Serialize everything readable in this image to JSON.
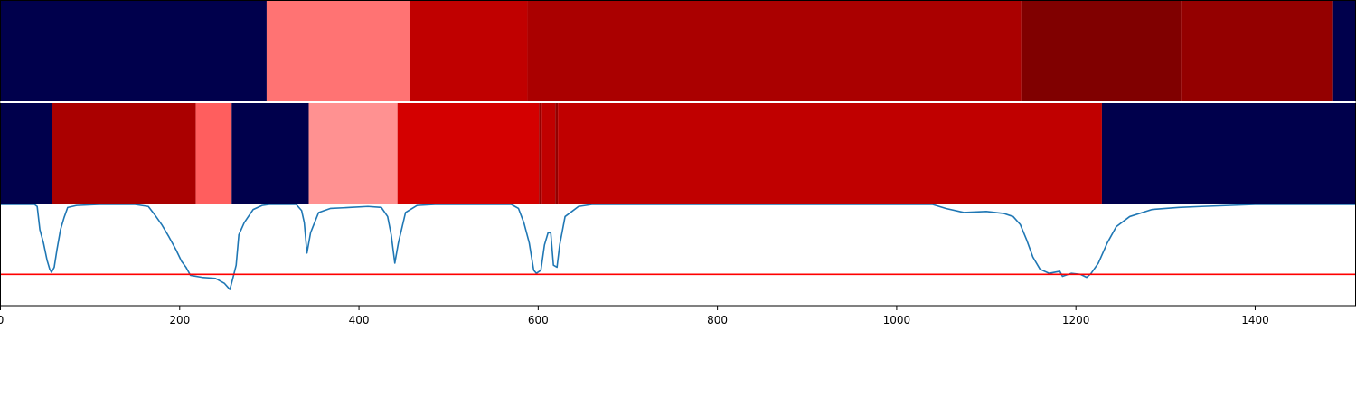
{
  "chart_data": {
    "type": "heatmap",
    "x_domain": [
      0,
      1512
    ],
    "xticks": [
      0,
      200,
      400,
      600,
      800,
      1000,
      1200,
      1400
    ],
    "xtick_labels": [
      "0",
      "200",
      "400",
      "600",
      "800",
      "1000",
      "1200",
      "1400"
    ],
    "grid": false,
    "track1": {
      "segments": [
        {
          "x0": 0,
          "x1": 297,
          "color": "#00004c"
        },
        {
          "x0": 297,
          "x1": 457,
          "color": "#ff7373"
        },
        {
          "x0": 457,
          "x1": 588,
          "color": "#c00000"
        },
        {
          "x0": 588,
          "x1": 1139,
          "color": "#aa0000"
        },
        {
          "x0": 1139,
          "x1": 1317,
          "color": "#800000"
        },
        {
          "x0": 1317,
          "x1": 1487,
          "color": "#940000"
        },
        {
          "x0": 1487,
          "x1": 1512,
          "color": "#00004c"
        }
      ]
    },
    "track2": {
      "segments": [
        {
          "x0": 0,
          "x1": 57,
          "color": "#00004c"
        },
        {
          "x0": 57,
          "x1": 218,
          "color": "#aa0000"
        },
        {
          "x0": 218,
          "x1": 258,
          "color": "#ff5e5e"
        },
        {
          "x0": 258,
          "x1": 344,
          "color": "#00004c"
        },
        {
          "x0": 344,
          "x1": 443,
          "color": "#ff9191"
        },
        {
          "x0": 443,
          "x1": 601,
          "color": "#d40000"
        },
        {
          "x0": 601,
          "x1": 604,
          "color": "#940000"
        },
        {
          "x0": 604,
          "x1": 619,
          "color": "#c00000"
        },
        {
          "x0": 619,
          "x1": 622,
          "color": "#940000"
        },
        {
          "x0": 622,
          "x1": 1229,
          "color": "#c00000"
        },
        {
          "x0": 1229,
          "x1": 1512,
          "color": "#00004c"
        }
      ]
    },
    "line": {
      "ylim": [
        0,
        1
      ],
      "color": "#1f77b4",
      "threshold": {
        "y": 0.31,
        "color": "#ff0000"
      },
      "points": [
        [
          0,
          1.0
        ],
        [
          38,
          1.0
        ],
        [
          41,
          0.98
        ],
        [
          44,
          0.75
        ],
        [
          48,
          0.62
        ],
        [
          52,
          0.45
        ],
        [
          55,
          0.36
        ],
        [
          57,
          0.33
        ],
        [
          60,
          0.38
        ],
        [
          63,
          0.55
        ],
        [
          67,
          0.75
        ],
        [
          71,
          0.87
        ],
        [
          75,
          0.97
        ],
        [
          85,
          0.99
        ],
        [
          110,
          1.0
        ],
        [
          150,
          1.0
        ],
        [
          165,
          0.98
        ],
        [
          172,
          0.9
        ],
        [
          180,
          0.8
        ],
        [
          188,
          0.68
        ],
        [
          196,
          0.55
        ],
        [
          202,
          0.44
        ],
        [
          207,
          0.38
        ],
        [
          212,
          0.3
        ],
        [
          225,
          0.28
        ],
        [
          240,
          0.27
        ],
        [
          250,
          0.22
        ],
        [
          256,
          0.16
        ],
        [
          259,
          0.26
        ],
        [
          263,
          0.4
        ],
        [
          266,
          0.7
        ],
        [
          272,
          0.82
        ],
        [
          282,
          0.95
        ],
        [
          292,
          0.99
        ],
        [
          300,
          1.0
        ],
        [
          330,
          1.0
        ],
        [
          336,
          0.94
        ],
        [
          339,
          0.82
        ],
        [
          342,
          0.52
        ],
        [
          346,
          0.72
        ],
        [
          355,
          0.92
        ],
        [
          368,
          0.96
        ],
        [
          390,
          0.97
        ],
        [
          410,
          0.98
        ],
        [
          425,
          0.97
        ],
        [
          432,
          0.88
        ],
        [
          436,
          0.7
        ],
        [
          440,
          0.42
        ],
        [
          444,
          0.62
        ],
        [
          452,
          0.92
        ],
        [
          465,
          0.99
        ],
        [
          485,
          1.0
        ],
        [
          570,
          1.0
        ],
        [
          578,
          0.96
        ],
        [
          584,
          0.82
        ],
        [
          590,
          0.62
        ],
        [
          595,
          0.35
        ],
        [
          598,
          0.32
        ],
        [
          603,
          0.35
        ],
        [
          607,
          0.6
        ],
        [
          611,
          0.72
        ],
        [
          614,
          0.72
        ],
        [
          617,
          0.4
        ],
        [
          621,
          0.38
        ],
        [
          624,
          0.6
        ],
        [
          630,
          0.88
        ],
        [
          645,
          0.98
        ],
        [
          660,
          1.0
        ],
        [
          1040,
          1.0
        ],
        [
          1055,
          0.96
        ],
        [
          1075,
          0.92
        ],
        [
          1100,
          0.93
        ],
        [
          1120,
          0.91
        ],
        [
          1130,
          0.88
        ],
        [
          1138,
          0.8
        ],
        [
          1145,
          0.65
        ],
        [
          1152,
          0.48
        ],
        [
          1160,
          0.36
        ],
        [
          1170,
          0.32
        ],
        [
          1182,
          0.34
        ],
        [
          1185,
          0.29
        ],
        [
          1195,
          0.32
        ],
        [
          1205,
          0.31
        ],
        [
          1212,
          0.28
        ],
        [
          1217,
          0.32
        ],
        [
          1225,
          0.42
        ],
        [
          1235,
          0.62
        ],
        [
          1245,
          0.78
        ],
        [
          1260,
          0.88
        ],
        [
          1285,
          0.95
        ],
        [
          1315,
          0.97
        ],
        [
          1340,
          0.98
        ],
        [
          1400,
          1.0
        ],
        [
          1512,
          1.0
        ]
      ]
    }
  }
}
